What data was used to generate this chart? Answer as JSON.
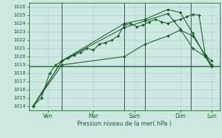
{
  "background_color": "#cce8e0",
  "grid_color": "#aacccc",
  "line_color": "#1a5c2a",
  "ylim": [
    1013.5,
    1026.5
  ],
  "yticks": [
    1014,
    1015,
    1016,
    1017,
    1018,
    1019,
    1020,
    1021,
    1022,
    1023,
    1024,
    1025,
    1026
  ],
  "xlabel": "Pression niveau de la mer( hPa )",
  "ref_value": 1018.8,
  "xtick_labels": [
    "Ven",
    "Mar",
    "Sam",
    "Dim",
    "Lun"
  ],
  "series1_x": [
    0,
    4,
    8,
    11,
    14,
    17,
    20,
    23,
    26,
    29,
    32,
    35,
    38,
    41,
    44,
    47,
    50,
    53,
    56,
    59,
    62,
    65,
    68,
    71,
    74,
    77,
    80,
    83,
    86
  ],
  "series1_y": [
    1014.0,
    1015.0,
    1018.0,
    1019.0,
    1019.5,
    1019.8,
    1020.2,
    1020.5,
    1021.0,
    1020.8,
    1021.5,
    1021.7,
    1022.0,
    1022.5,
    1023.8,
    1024.0,
    1023.6,
    1023.8,
    1024.2,
    1024.5,
    1024.2,
    1024.0,
    1024.3,
    1024.5,
    1024.8,
    1025.1,
    1025.0,
    1020.2,
    1019.5
  ],
  "series2_x": [
    0,
    14,
    44,
    54,
    65,
    71,
    77,
    83,
    86
  ],
  "series2_y": [
    1014.0,
    1019.5,
    1024.0,
    1024.5,
    1025.7,
    1025.3,
    1022.8,
    1020.0,
    1018.8
  ],
  "series3_x": [
    0,
    14,
    44,
    54,
    65,
    71,
    77,
    83,
    86
  ],
  "series3_y": [
    1014.0,
    1019.5,
    1023.5,
    1024.3,
    1025.2,
    1023.3,
    1021.0,
    1020.0,
    1018.8
  ],
  "series4_x": [
    0,
    14,
    44,
    54,
    65,
    71,
    77,
    83,
    86
  ],
  "series4_y": [
    1014.0,
    1019.0,
    1020.0,
    1021.5,
    1022.5,
    1023.2,
    1022.5,
    1020.2,
    1019.0
  ],
  "xtick_x": [
    7,
    29,
    49,
    71,
    86
  ],
  "vline_x": [
    14,
    44,
    54,
    76
  ]
}
